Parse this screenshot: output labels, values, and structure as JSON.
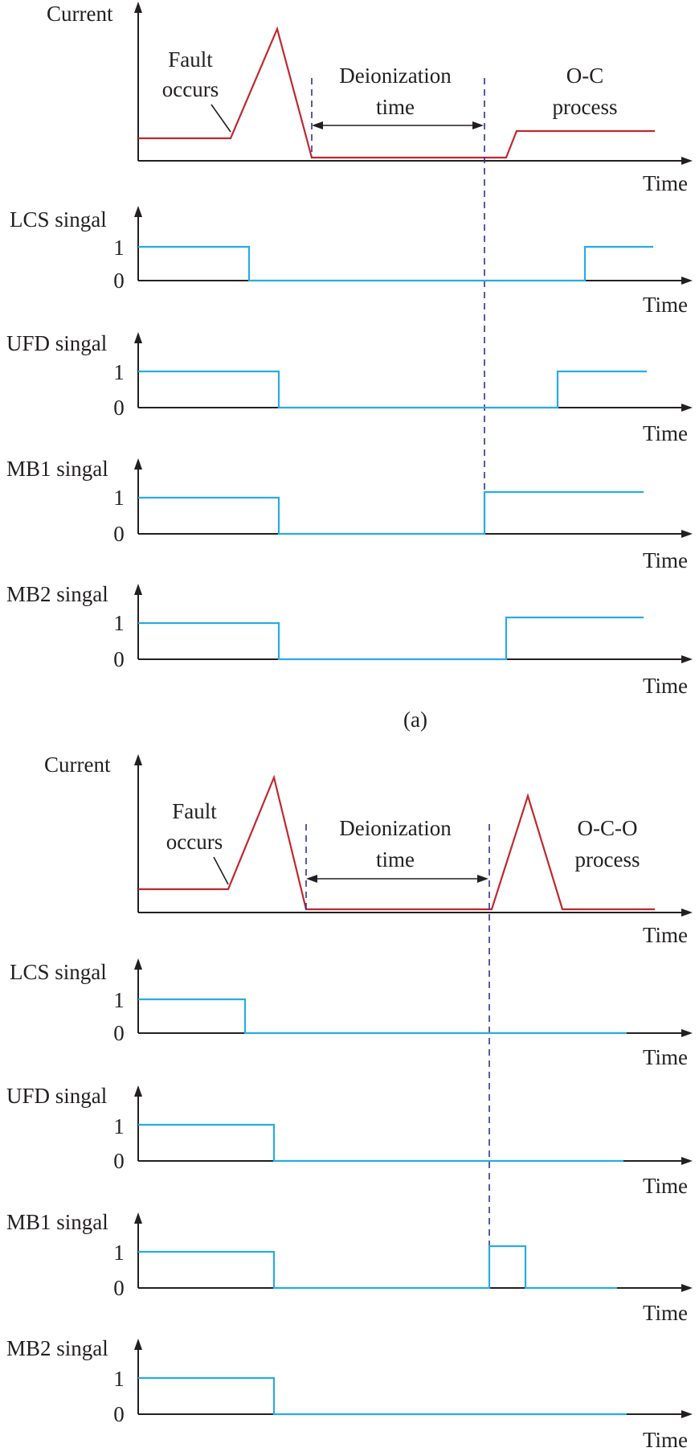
{
  "colors": {
    "current": "#c1272d",
    "signal": "#29abe2",
    "marker": "#2e3192",
    "axis": "#231f20"
  },
  "x_axis_label": "Time",
  "panels": [
    {
      "caption": "(a)",
      "current": {
        "ylabel": "Current",
        "fault_label": [
          "Fault",
          "occurs"
        ],
        "deionization_label": [
          "Deionization",
          "time"
        ],
        "process_label": [
          "O-C",
          "process"
        ]
      },
      "signals": [
        {
          "ylabel": "LCS singal",
          "ticks": [
            "1",
            "0"
          ]
        },
        {
          "ylabel": "UFD singal",
          "ticks": [
            "1",
            "0"
          ]
        },
        {
          "ylabel": "MB1 singal",
          "ticks": [
            "1",
            "0"
          ]
        },
        {
          "ylabel": "MB2 singal",
          "ticks": [
            "1",
            "0"
          ]
        }
      ]
    },
    {
      "caption": "",
      "current": {
        "ylabel": "Current",
        "fault_label": [
          "Fault",
          "occurs"
        ],
        "deionization_label": [
          "Deionization",
          "time"
        ],
        "process_label": [
          "O-C-O",
          "process"
        ]
      },
      "signals": [
        {
          "ylabel": "LCS singal",
          "ticks": [
            "1",
            "0"
          ]
        },
        {
          "ylabel": "UFD singal",
          "ticks": [
            "1",
            "0"
          ]
        },
        {
          "ylabel": "MB1 singal",
          "ticks": [
            "1",
            "0"
          ]
        },
        {
          "ylabel": "MB2 singal",
          "ticks": [
            "1",
            "0"
          ]
        }
      ]
    }
  ]
}
